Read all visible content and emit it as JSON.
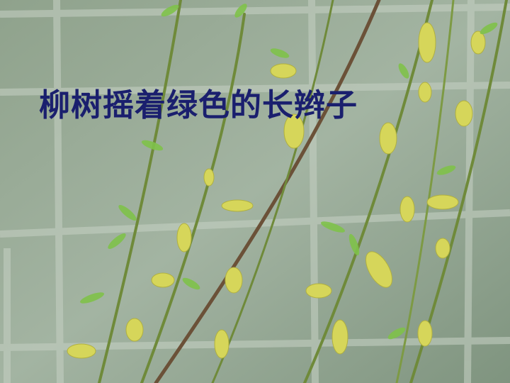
{
  "slide": {
    "title": "柳树摇着绿色的长辫子"
  }
}
